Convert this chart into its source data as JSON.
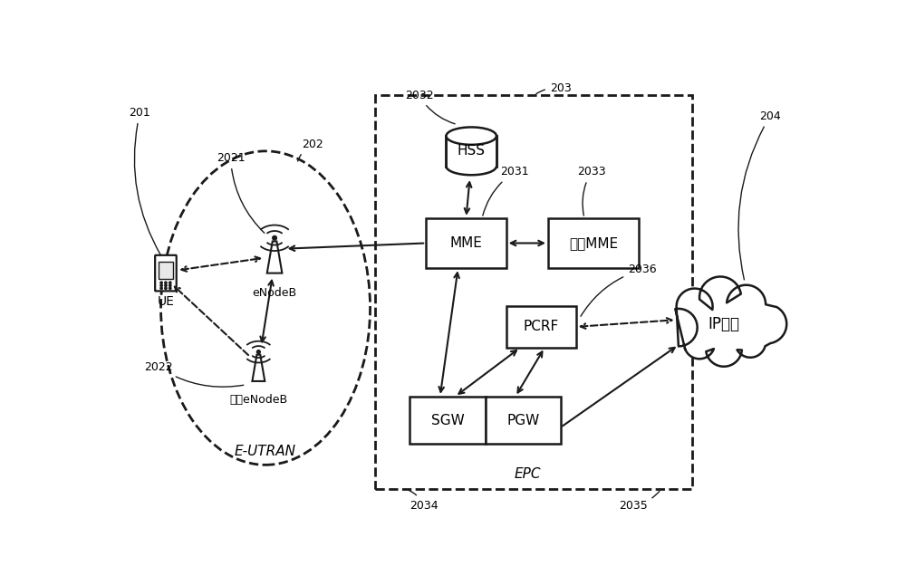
{
  "bg_color": "#ffffff",
  "fig_w": 10.0,
  "fig_h": 6.46,
  "labels": {
    "UE": "UE",
    "eNodeB": "eNodeB",
    "other_eNodeB": "其它eNodeB",
    "E_UTRAN": "E-UTRAN",
    "HSS": "HSS",
    "MME": "MME",
    "other_MME": "其它MME",
    "PCRF": "PCRF",
    "SGW": "SGW",
    "PGW": "PGW",
    "EPC": "EPC",
    "IP": "IP业务",
    "n201": "201",
    "n202": "202",
    "n203": "203",
    "n204": "204",
    "n2021": "2021",
    "n2022": "2022",
    "n2031": "2031",
    "n2032": "2032",
    "n2033": "2033",
    "n2034": "2034",
    "n2035": "2035",
    "n2036": "2036"
  }
}
